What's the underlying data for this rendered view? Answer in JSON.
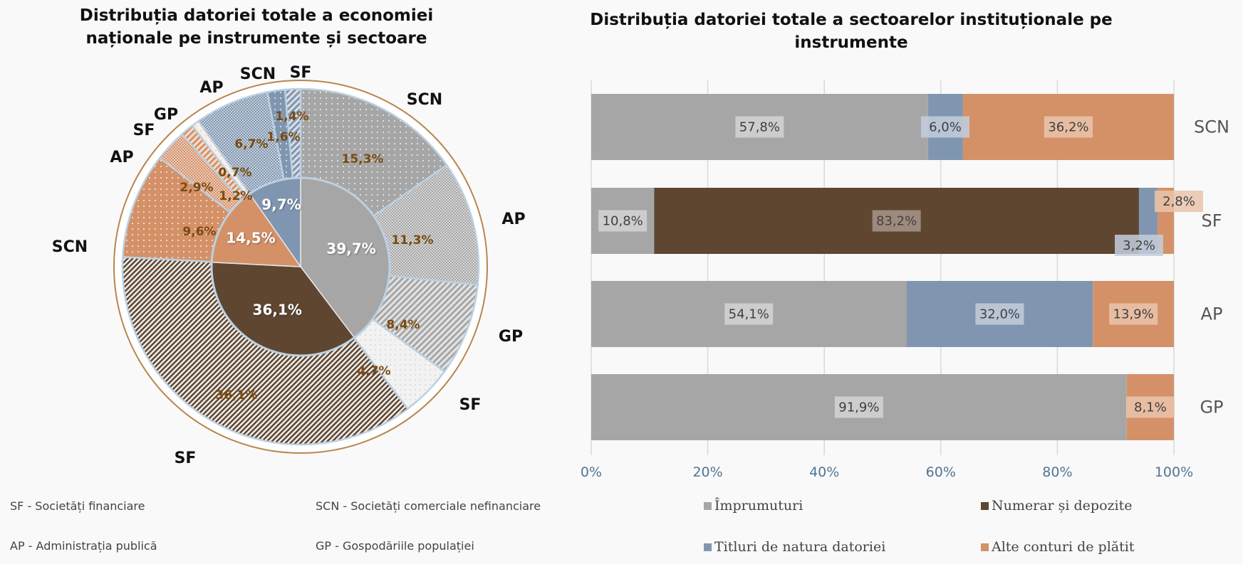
{
  "colors": {
    "imprumuturi": "#a6a6a6",
    "numerar": "#5e4631",
    "titluri": "#8096b0",
    "alte": "#d49168",
    "label_brown": "#7a4a10",
    "axis_blue": "#4f7597"
  },
  "chart_data": [
    {
      "type": "pie",
      "subtype": "doughnut-with-inner-pie",
      "title": "Distribuția datoriei totale a economiei naționale  pe instrumente și sectoare",
      "inner": [
        {
          "instrument": "Împrumuturi",
          "value": 39.7,
          "label": "39,7%"
        },
        {
          "instrument": "Numerar și depozite",
          "value": 36.1,
          "label": "36,1%"
        },
        {
          "instrument": "Alte conturi de plătit",
          "value": 14.5,
          "label": "14,5%"
        },
        {
          "instrument": "Titluri de natura datoriei",
          "value": 9.7,
          "label": "9,7%"
        }
      ],
      "outer": [
        {
          "instrument": "Împrumuturi",
          "sector": "SCN",
          "value": 15.3,
          "label": "15,3%",
          "pattern": "dots"
        },
        {
          "instrument": "Împrumuturi",
          "sector": "AP",
          "value": 11.3,
          "label": "11,3%",
          "pattern": "fine-check"
        },
        {
          "instrument": "Împrumuturi",
          "sector": "GP",
          "value": 8.4,
          "label": "8,4%",
          "pattern": "stripes"
        },
        {
          "instrument": "Împrumuturi",
          "sector": "SF",
          "value": 4.7,
          "label": "4,7%",
          "pattern": "white-dots"
        },
        {
          "instrument": "Numerar și depozite",
          "sector": "SF",
          "value": 36.1,
          "label": "36,1%",
          "pattern": "dark-stripes"
        },
        {
          "instrument": "Alte conturi de plătit",
          "sector": "SCN",
          "value": 9.6,
          "label": "9,6%",
          "pattern": "dots"
        },
        {
          "instrument": "Alte conturi de plătit",
          "sector": "AP",
          "value": 2.9,
          "label": "2,9%",
          "pattern": "fine-check"
        },
        {
          "instrument": "Alte conturi de plătit",
          "sector": "SF",
          "value": 1.2,
          "label": "1,2%",
          "pattern": "stripes"
        },
        {
          "instrument": "Alte conturi de plătit",
          "sector": "GP",
          "value": 0.7,
          "label": "0,7%",
          "pattern": "white-dots"
        },
        {
          "instrument": "Titluri de natura datoriei",
          "sector": "AP",
          "value": 6.7,
          "label": "6,7%",
          "pattern": "fine-check"
        },
        {
          "instrument": "Titluri de natura datoriei",
          "sector": "SCN",
          "value": 1.6,
          "label": "1,6%",
          "pattern": "dots"
        },
        {
          "instrument": "Titluri de natura datoriei",
          "sector": "SF",
          "value": 1.4,
          "label": "1,4%",
          "pattern": "stripes"
        }
      ]
    },
    {
      "type": "bar",
      "subtype": "stacked-100-horizontal",
      "title": "Distribuția datoriei totale a sectoarelor instituționale pe instrumente",
      "categories": [
        "SCN",
        "SF",
        "AP",
        "GP"
      ],
      "series": [
        {
          "name": "Împrumuturi",
          "values": [
            57.8,
            10.8,
            54.1,
            91.9
          ],
          "labels": [
            "57,8%",
            "10,8%",
            "54,1%",
            "91,9%"
          ]
        },
        {
          "name": "Numerar și depozite",
          "values": [
            0,
            83.2,
            0,
            0
          ],
          "labels": [
            "",
            "83,2%",
            "",
            ""
          ]
        },
        {
          "name": "Titluri de natura datoriei",
          "values": [
            6.0,
            3.2,
            32.0,
            0
          ],
          "labels": [
            "6,0%",
            "3,2%",
            "32,0%",
            ""
          ]
        },
        {
          "name": "Alte conturi de plătit",
          "values": [
            36.2,
            2.8,
            13.9,
            8.1
          ],
          "labels": [
            "36,2%",
            "2,8%",
            "13,9%",
            "8,1%"
          ]
        }
      ],
      "xlim": [
        0,
        100
      ],
      "xticks": [
        "0%",
        "20%",
        "40%",
        "60%",
        "80%",
        "100%"
      ],
      "grid": true,
      "legend": "bottom"
    }
  ],
  "abbreviations": [
    "SF - Societăți financiare",
    "SCN - Societăți comerciale nefinanciare",
    "AP - Administrația publică",
    "GP - Gospodăriile populației"
  ],
  "legend": [
    "Împrumuturi",
    "Numerar și depozite",
    "Titluri de natura datoriei",
    "Alte conturi de plătit"
  ]
}
